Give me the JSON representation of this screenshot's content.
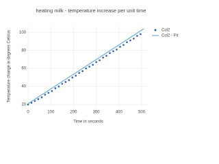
{
  "chart_data": {
    "type": "scatter",
    "title": "heating milk - temperature increase per unit time",
    "x_label": "Time in seconds",
    "y_label": "Temperature change in degrees Celsius",
    "xlim": [
      0,
      530
    ],
    "ylim": [
      17,
      107
    ],
    "xticks": [
      0,
      100,
      200,
      300,
      400,
      500
    ],
    "yticks": [
      20,
      40,
      60,
      80,
      100
    ],
    "grid": true,
    "series": [
      {
        "name": "Col2",
        "mode": "markers",
        "color": "#2b5aa8",
        "x": [
          0,
          15,
          30,
          45,
          60,
          75,
          90,
          105,
          120,
          135,
          150,
          165,
          180,
          195,
          210,
          225,
          240,
          255,
          270,
          285,
          300,
          315,
          330,
          345,
          360,
          375,
          390,
          405,
          420,
          435,
          450,
          465,
          480,
          495
        ],
        "values": [
          20,
          22,
          24,
          26,
          28,
          31,
          33,
          35,
          38,
          40,
          43,
          45,
          47,
          50,
          52,
          55,
          57,
          60,
          62,
          64,
          67,
          69,
          72,
          74,
          77,
          79,
          81,
          84,
          86,
          89,
          91,
          93,
          96,
          98
        ]
      },
      {
        "name": "Col2 - Fit",
        "mode": "lines",
        "color": "#6aafdc",
        "x": [
          0,
          510
        ],
        "values": [
          21,
          104
        ]
      }
    ]
  }
}
